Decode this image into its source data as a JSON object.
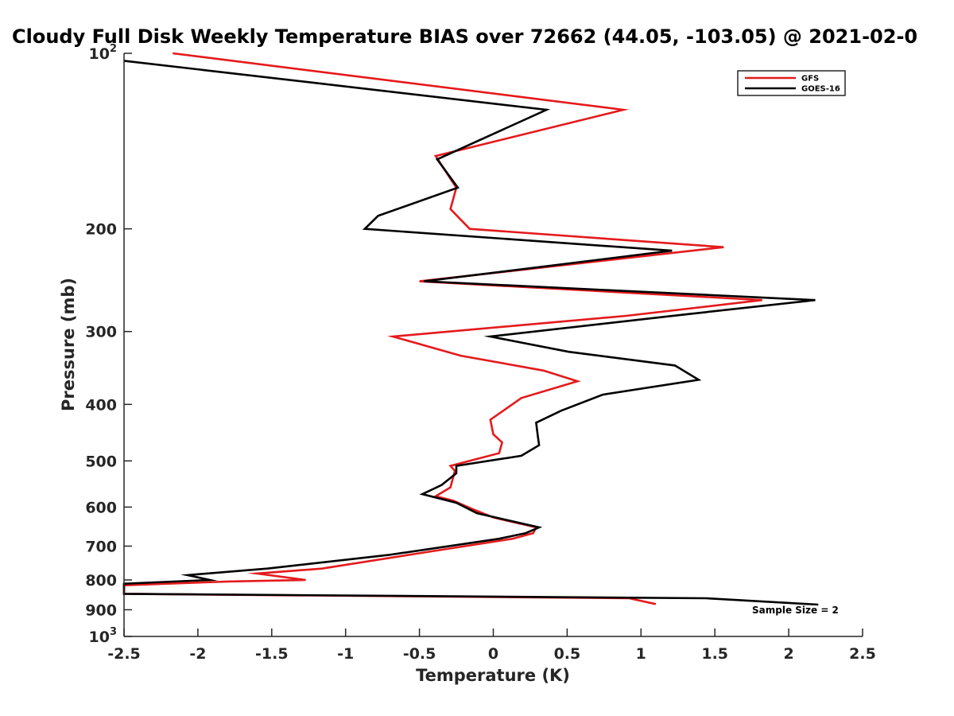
{
  "chart_data": {
    "type": "line",
    "title": "Cloudy Full Disk Weekly Temperature BIAS over 72662 (44.05, -103.05) @ 2021-02-0",
    "xlabel": "Temperature (K)",
    "ylabel": "Pressure (mb)",
    "xlim": [
      -2.5,
      2.5
    ],
    "ylim": [
      100,
      1000
    ],
    "y_scale": "log",
    "y_reversed": true,
    "grid": false,
    "legend_position": "top-right",
    "x_ticks": [
      "-2.5",
      "-2",
      "-1.5",
      "-1",
      "-0.5",
      "0",
      "0.5",
      "1",
      "1.5",
      "2",
      "2.5"
    ],
    "y_ticks": [
      {
        "value": 100,
        "base": "10",
        "exp": "2"
      },
      {
        "value": 200,
        "label": "200"
      },
      {
        "value": 300,
        "label": "300"
      },
      {
        "value": 400,
        "label": "400"
      },
      {
        "value": 500,
        "label": "500"
      },
      {
        "value": 600,
        "label": "600"
      },
      {
        "value": 700,
        "label": "700"
      },
      {
        "value": 800,
        "label": "800"
      },
      {
        "value": 900,
        "label": "900"
      },
      {
        "value": 1000,
        "base": "10",
        "exp": "3"
      }
    ],
    "annotation": "Sample Size = 2",
    "series": [
      {
        "name": "GFS",
        "color": "#e41a1c",
        "points": [
          [
            -2.17,
            100
          ],
          [
            0.88,
            125
          ],
          [
            -0.39,
            150
          ],
          [
            -0.25,
            170
          ],
          [
            -0.29,
            185
          ],
          [
            -0.16,
            200
          ],
          [
            1.56,
            215
          ],
          [
            -0.5,
            246
          ],
          [
            1.82,
            265
          ],
          [
            0.9,
            282
          ],
          [
            -0.68,
            306
          ],
          [
            -0.22,
            330
          ],
          [
            0.34,
            350
          ],
          [
            0.57,
            365
          ],
          [
            0.19,
            390
          ],
          [
            -0.02,
            425
          ],
          [
            0.0,
            450
          ],
          [
            0.06,
            465
          ],
          [
            0.04,
            485
          ],
          [
            -0.29,
            510
          ],
          [
            -0.26,
            520
          ],
          [
            -0.29,
            555
          ],
          [
            -0.39,
            575
          ],
          [
            -0.27,
            585
          ],
          [
            -0.14,
            605
          ],
          [
            0.0,
            625
          ],
          [
            0.29,
            650
          ],
          [
            0.27,
            665
          ],
          [
            0.13,
            680
          ],
          [
            -0.5,
            720
          ],
          [
            -1.16,
            765
          ],
          [
            -1.6,
            780
          ],
          [
            -1.27,
            800
          ],
          [
            -1.79,
            805
          ],
          [
            -2.5,
            817
          ],
          [
            -2.5,
            845
          ],
          [
            0.92,
            860
          ],
          [
            1.1,
            880
          ]
        ]
      },
      {
        "name": "GOES-16",
        "color": "#000000",
        "points": [
          [
            -2.5,
            103
          ],
          [
            0.36,
            125
          ],
          [
            -0.38,
            152
          ],
          [
            -0.24,
            170
          ],
          [
            -0.78,
            190
          ],
          [
            -0.87,
            200
          ],
          [
            1.21,
            218
          ],
          [
            -0.47,
            246
          ],
          [
            2.18,
            265
          ],
          [
            1.32,
            280
          ],
          [
            -0.02,
            306
          ],
          [
            0.51,
            325
          ],
          [
            1.23,
            343
          ],
          [
            1.39,
            363
          ],
          [
            0.74,
            385
          ],
          [
            0.46,
            410
          ],
          [
            0.29,
            430
          ],
          [
            0.3,
            450
          ],
          [
            0.31,
            470
          ],
          [
            0.19,
            490
          ],
          [
            -0.25,
            510
          ],
          [
            -0.25,
            525
          ],
          [
            -0.35,
            550
          ],
          [
            -0.48,
            570
          ],
          [
            -0.25,
            590
          ],
          [
            -0.11,
            615
          ],
          [
            0.31,
            650
          ],
          [
            0.22,
            665
          ],
          [
            0.04,
            680
          ],
          [
            -0.71,
            725
          ],
          [
            -1.53,
            765
          ],
          [
            -2.07,
            785
          ],
          [
            -1.92,
            800
          ],
          [
            -2.5,
            812
          ],
          [
            -2.5,
            845
          ],
          [
            1.44,
            860
          ],
          [
            2.2,
            882
          ]
        ]
      }
    ]
  }
}
